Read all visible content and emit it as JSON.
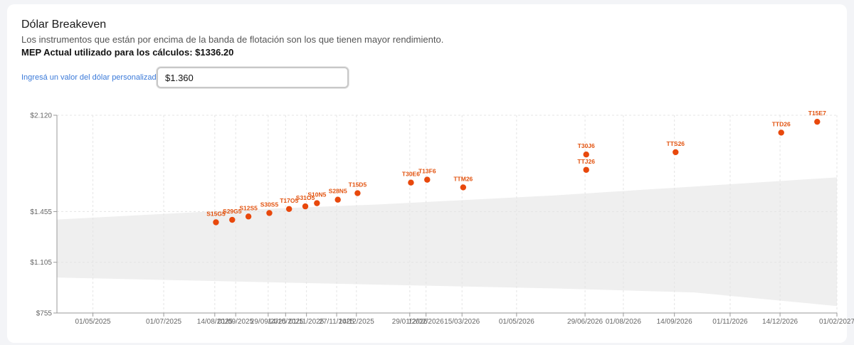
{
  "header": {
    "title": "Dólar Breakeven",
    "subtitle": "Los instrumentos que están por encima de la banda de flotación son los que tienen mayor rendimiento.",
    "mep_text": "MEP Actual utilizado para los cálculos: $1336.20"
  },
  "custom_dollar": {
    "label": "Ingresá un valor del dólar personalizado:",
    "value": "$1.360"
  },
  "colors": {
    "point": "#e8480c",
    "label": "#e2520e",
    "band": "#efefef",
    "grid": "#e4e4e4",
    "axis": "#999999"
  },
  "chart_data": {
    "type": "scatter",
    "title": "",
    "xlabel": "",
    "ylabel": "",
    "ylim": [
      755,
      2120
    ],
    "xlim": [
      "2025-03-31",
      "2027-02-01"
    ],
    "grid": true,
    "y_ticks": [
      {
        "value": 755,
        "label": "$755"
      },
      {
        "value": 1105,
        "label": "$1.105"
      },
      {
        "value": 1455,
        "label": "$1.455"
      },
      {
        "value": 2120,
        "label": "$2.120"
      }
    ],
    "x_ticks": [
      {
        "date": "2025-05-01",
        "label": "01/05/2025"
      },
      {
        "date": "2025-07-01",
        "label": "01/07/2025"
      },
      {
        "date": "2025-08-14",
        "label": "14/08/2025"
      },
      {
        "date": "2025-09-01",
        "label": "01/09/2025"
      },
      {
        "date": "2025-09-29",
        "label": "29/09/2025"
      },
      {
        "date": "2025-10-14",
        "label": "14/10/2025"
      },
      {
        "date": "2025-11-01",
        "label": "01/11/2025"
      },
      {
        "date": "2025-11-27",
        "label": "27/11/2025"
      },
      {
        "date": "2025-12-14",
        "label": "14/12/2025"
      },
      {
        "date": "2026-01-29",
        "label": "29/01/2026"
      },
      {
        "date": "2026-02-12",
        "label": "12/02/2026"
      },
      {
        "date": "2026-03-15",
        "label": "15/03/2026"
      },
      {
        "date": "2026-05-01",
        "label": "01/05/2026"
      },
      {
        "date": "2026-06-29",
        "label": "29/06/2026"
      },
      {
        "date": "2026-08-01",
        "label": "01/08/2026"
      },
      {
        "date": "2026-09-14",
        "label": "14/09/2026"
      },
      {
        "date": "2026-11-01",
        "label": "01/11/2026"
      },
      {
        "date": "2026-12-14",
        "label": "14/12/2026"
      },
      {
        "date": "2027-02-01",
        "label": "01/02/2027"
      }
    ],
    "points": [
      {
        "name": "S15G5",
        "date": "2025-08-15",
        "value": 1381
      },
      {
        "name": "S29G5",
        "date": "2025-08-29",
        "value": 1398
      },
      {
        "name": "S12S5",
        "date": "2025-09-12",
        "value": 1421
      },
      {
        "name": "S30S5",
        "date": "2025-09-30",
        "value": 1445
      },
      {
        "name": "T17O5",
        "date": "2025-10-17",
        "value": 1473
      },
      {
        "name": "S31O5",
        "date": "2025-10-31",
        "value": 1491
      },
      {
        "name": "S10N5",
        "date": "2025-11-10",
        "value": 1513
      },
      {
        "name": "S28N5",
        "date": "2025-11-28",
        "value": 1537
      },
      {
        "name": "T15D5",
        "date": "2025-12-15",
        "value": 1582
      },
      {
        "name": "T30E6",
        "date": "2026-01-30",
        "value": 1655
      },
      {
        "name": "T13F6",
        "date": "2026-02-13",
        "value": 1675
      },
      {
        "name": "TTM26",
        "date": "2026-03-16",
        "value": 1622
      },
      {
        "name": "TTJ26",
        "date": "2026-06-30",
        "value": 1743
      },
      {
        "name": "T30J6",
        "date": "2026-06-30",
        "value": 1849
      },
      {
        "name": "TTS26",
        "date": "2026-09-15",
        "value": 1865
      },
      {
        "name": "TTD26",
        "date": "2026-12-15",
        "value": 2000
      },
      {
        "name": "T15E7",
        "date": "2027-01-15",
        "value": 2075
      }
    ],
    "band": {
      "name": "banda de flotación",
      "x": [
        "2025-03-31",
        "2025-09-01",
        "2026-01-01",
        "2026-06-01",
        "2026-10-01",
        "2027-02-01"
      ],
      "upper": [
        1400,
        1465,
        1504,
        1566,
        1628,
        1691
      ],
      "lower": [
        1000,
        972,
        951,
        925,
        897,
        803
      ]
    }
  }
}
